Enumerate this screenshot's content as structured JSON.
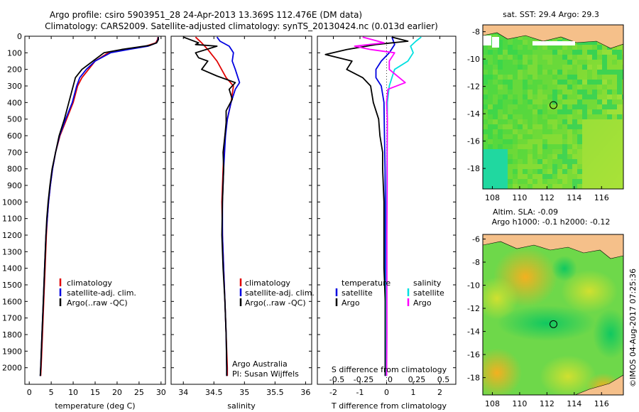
{
  "header": {
    "title_line1": "Argo profile: csiro 5903951_28 24-Apr-2013 13.369S 112.476E (DM data)",
    "title_line2": "Climatology: CARS2009. Satellite-adjusted climatology: synTS_20130424.nc (0.013d earlier)"
  },
  "colors": {
    "climatology": "#e00000",
    "satellite": "#0000e0",
    "argo": "#000000",
    "sat_salinity": "#00e0e0",
    "argo_salinity": "#ff00ff"
  },
  "chart_data": [
    {
      "id": "temperature",
      "type": "line",
      "xlabel": "temperature (deg C)",
      "ylabel": "",
      "xlim": [
        -1,
        31
      ],
      "ylim": [
        2100,
        0
      ],
      "xticks": [
        0,
        5,
        10,
        15,
        20,
        25,
        30
      ],
      "xtick_labels": [
        "0",
        "5",
        "10",
        "15",
        "20",
        "25",
        "30"
      ],
      "yticks": [
        0,
        100,
        200,
        300,
        400,
        500,
        600,
        700,
        800,
        900,
        1000,
        1100,
        1200,
        1300,
        1400,
        1500,
        1600,
        1700,
        1800,
        1900,
        2000
      ],
      "ytick_labels": [
        "0",
        "100",
        "200",
        "300",
        "400",
        "500",
        "600",
        "700",
        "800",
        "900",
        "1000",
        "1100",
        "1200",
        "1300",
        "1400",
        "1500",
        "1600",
        "1700",
        "1800",
        "1900",
        "2000"
      ],
      "legend": {
        "position": "bottom-left",
        "items": [
          "climatology",
          "satellite-adj. clim.",
          "Argo(..raw -QC)"
        ]
      },
      "series": [
        {
          "name": "climatology",
          "color": "#e00000",
          "points": [
            [
              29.3,
              5
            ],
            [
              29.2,
              20
            ],
            [
              28.8,
              40
            ],
            [
              26.5,
              60
            ],
            [
              22,
              80
            ],
            [
              18,
              100
            ],
            [
              15,
              150
            ],
            [
              13.5,
              200
            ],
            [
              12,
              250
            ],
            [
              11,
              300
            ],
            [
              10,
              400
            ],
            [
              8.5,
              500
            ],
            [
              7,
              600
            ],
            [
              6,
              700
            ],
            [
              5.3,
              800
            ],
            [
              4.8,
              900
            ],
            [
              4.4,
              1000
            ],
            [
              4.1,
              1100
            ],
            [
              3.9,
              1200
            ],
            [
              3.6,
              1400
            ],
            [
              3.3,
              1600
            ],
            [
              3,
              1800
            ],
            [
              2.7,
              2000
            ],
            [
              2.6,
              2050
            ]
          ]
        },
        {
          "name": "satellite-adj. clim.",
          "color": "#0000e0",
          "points": [
            [
              29.4,
              5
            ],
            [
              29.3,
              20
            ],
            [
              29,
              40
            ],
            [
              27,
              60
            ],
            [
              22.5,
              80
            ],
            [
              18.5,
              100
            ],
            [
              15,
              150
            ],
            [
              13,
              200
            ],
            [
              11.5,
              250
            ],
            [
              10.8,
              300
            ],
            [
              9.8,
              400
            ],
            [
              8.3,
              500
            ],
            [
              6.9,
              600
            ],
            [
              6,
              700
            ],
            [
              5.3,
              800
            ],
            [
              4.8,
              900
            ],
            [
              4.4,
              1000
            ],
            [
              4.1,
              1100
            ],
            [
              3.8,
              1200
            ],
            [
              3.5,
              1400
            ],
            [
              3.2,
              1600
            ],
            [
              2.9,
              1800
            ],
            [
              2.6,
              2000
            ],
            [
              2.5,
              2050
            ]
          ]
        },
        {
          "name": "Argo(..raw -QC)",
          "color": "#000000",
          "points": [
            [
              29.4,
              5
            ],
            [
              29.4,
              20
            ],
            [
              29,
              40
            ],
            [
              27.5,
              55
            ],
            [
              21,
              80
            ],
            [
              17,
              100
            ],
            [
              14.5,
              150
            ],
            [
              12,
              200
            ],
            [
              10.5,
              250
            ],
            [
              10,
              300
            ],
            [
              9,
              400
            ],
            [
              8,
              500
            ],
            [
              6.8,
              600
            ],
            [
              6,
              700
            ],
            [
              5.2,
              800
            ],
            [
              4.7,
              900
            ],
            [
              4.3,
              1000
            ],
            [
              4,
              1100
            ],
            [
              3.8,
              1200
            ],
            [
              3.5,
              1400
            ],
            [
              3.2,
              1600
            ],
            [
              2.9,
              1800
            ],
            [
              2.6,
              2000
            ],
            [
              2.5,
              2050
            ]
          ]
        }
      ]
    },
    {
      "id": "salinity",
      "type": "line",
      "xlabel": "salinity",
      "xlim": [
        33.8,
        36.1
      ],
      "ylim": [
        2100,
        0
      ],
      "xticks": [
        34,
        34.5,
        35,
        35.5,
        36
      ],
      "xtick_labels": [
        "34",
        "34.5",
        "35",
        "35.5",
        "36"
      ],
      "legend": {
        "position": "bottom-right",
        "items": [
          "climatology",
          "satellite-adj. clim.",
          "Argo(..raw -QC)"
        ]
      },
      "annotation": [
        "Argo Australia",
        "PI: Susan Wijffels"
      ],
      "series": [
        {
          "name": "climatology",
          "color": "#e00000",
          "points": [
            [
              34.2,
              5
            ],
            [
              34.3,
              40
            ],
            [
              34.4,
              80
            ],
            [
              34.55,
              150
            ],
            [
              34.7,
              250
            ],
            [
              34.82,
              300
            ],
            [
              34.78,
              400
            ],
            [
              34.72,
              500
            ],
            [
              34.68,
              600
            ],
            [
              34.65,
              800
            ],
            [
              34.63,
              1000
            ],
            [
              34.64,
              1200
            ],
            [
              34.66,
              1400
            ],
            [
              34.68,
              1600
            ],
            [
              34.7,
              1800
            ],
            [
              34.72,
              2000
            ],
            [
              34.72,
              2050
            ]
          ]
        },
        {
          "name": "satellite-adj. clim.",
          "color": "#0000e0",
          "points": [
            [
              34.55,
              5
            ],
            [
              34.6,
              30
            ],
            [
              34.75,
              60
            ],
            [
              34.82,
              100
            ],
            [
              34.8,
              150
            ],
            [
              34.85,
              200
            ],
            [
              34.92,
              280
            ],
            [
              34.85,
              320
            ],
            [
              34.78,
              400
            ],
            [
              34.72,
              500
            ],
            [
              34.69,
              600
            ],
            [
              34.66,
              800
            ],
            [
              34.64,
              1000
            ],
            [
              34.64,
              1200
            ],
            [
              34.66,
              1400
            ],
            [
              34.68,
              1600
            ],
            [
              34.7,
              1800
            ],
            [
              34.71,
              2000
            ],
            [
              34.71,
              2050
            ]
          ]
        },
        {
          "name": "Argo(..raw -QC)",
          "color": "#000000",
          "points": [
            [
              34.0,
              5
            ],
            [
              34.25,
              40
            ],
            [
              34.2,
              50
            ],
            [
              34.55,
              60
            ],
            [
              34.2,
              100
            ],
            [
              34.25,
              130
            ],
            [
              34.4,
              150
            ],
            [
              34.3,
              200
            ],
            [
              34.55,
              240
            ],
            [
              34.85,
              280
            ],
            [
              34.75,
              320
            ],
            [
              34.8,
              380
            ],
            [
              34.7,
              450
            ],
            [
              34.7,
              520
            ],
            [
              34.68,
              600
            ],
            [
              34.65,
              700
            ],
            [
              34.66,
              800
            ],
            [
              34.64,
              1000
            ],
            [
              34.63,
              1200
            ],
            [
              34.65,
              1400
            ],
            [
              34.68,
              1600
            ],
            [
              34.7,
              1800
            ],
            [
              34.71,
              2000
            ],
            [
              34.71,
              2050
            ]
          ]
        }
      ]
    },
    {
      "id": "difference",
      "type": "line",
      "xlabel": "T difference from climatology",
      "xlabel2": "S difference from climatology",
      "xlim": [
        -2.6,
        2.6
      ],
      "ylim": [
        2100,
        0
      ],
      "xticks": [
        -2,
        -1,
        0,
        1,
        2
      ],
      "xtick_labels": [
        "-2",
        "-1",
        "0",
        "1",
        "2"
      ],
      "xticks_top": [
        -0.5,
        -0.25,
        0,
        0.25,
        0.5
      ],
      "xtick_labels_top": [
        "-0.5",
        "-0.25",
        "0",
        "0.25",
        "0.5"
      ],
      "legend": {
        "position": "bottom",
        "items": [
          "temperature",
          "satellite",
          "Argo",
          "salinity",
          "satellite",
          "Argo"
        ]
      },
      "series": [
        {
          "name": "temperature satellite",
          "color": "#0000e0",
          "points": [
            [
              0.2,
              5
            ],
            [
              0.3,
              50
            ],
            [
              0.1,
              100
            ],
            [
              -0.2,
              150
            ],
            [
              -0.4,
              200
            ],
            [
              -0.4,
              250
            ],
            [
              -0.2,
              300
            ],
            [
              -0.1,
              400
            ],
            [
              -0.08,
              600
            ],
            [
              -0.06,
              800
            ],
            [
              -0.05,
              1000
            ],
            [
              -0.05,
              1400
            ],
            [
              -0.05,
              1800
            ],
            [
              -0.05,
              2050
            ]
          ]
        },
        {
          "name": "temperature Argo",
          "color": "#000000",
          "points": [
            [
              0.2,
              5
            ],
            [
              0.8,
              30
            ],
            [
              -0.4,
              50
            ],
            [
              -1.5,
              80
            ],
            [
              -2.3,
              110
            ],
            [
              -1.3,
              150
            ],
            [
              -1.5,
              200
            ],
            [
              -0.9,
              250
            ],
            [
              -0.6,
              300
            ],
            [
              -0.5,
              400
            ],
            [
              -0.3,
              500
            ],
            [
              -0.25,
              600
            ],
            [
              -0.15,
              700
            ],
            [
              -0.15,
              800
            ],
            [
              -0.1,
              1000
            ],
            [
              -0.1,
              1200
            ],
            [
              -0.1,
              1400
            ],
            [
              -0.05,
              1600
            ],
            [
              -0.05,
              2050
            ]
          ]
        },
        {
          "name": "salinity satellite",
          "color": "#00e0e0",
          "points": [
            [
              1.3,
              5
            ],
            [
              1.1,
              30
            ],
            [
              0.9,
              60
            ],
            [
              1.0,
              100
            ],
            [
              0.8,
              150
            ],
            [
              0.3,
              200
            ],
            [
              0.2,
              250
            ],
            [
              0.1,
              300
            ],
            [
              0.03,
              400
            ],
            [
              0.02,
              600
            ],
            [
              0.01,
              800
            ],
            [
              0,
              1000
            ],
            [
              -0.01,
              1500
            ],
            [
              -0.01,
              2050
            ]
          ]
        },
        {
          "name": "salinity Argo",
          "color": "#ff00ff",
          "points": [
            [
              -0.9,
              5
            ],
            [
              -0.1,
              40
            ],
            [
              -1.2,
              60
            ],
            [
              -0.6,
              80
            ],
            [
              0.3,
              100
            ],
            [
              0.1,
              150
            ],
            [
              0.1,
              200
            ],
            [
              0.7,
              280
            ],
            [
              0.05,
              320
            ],
            [
              0.0,
              400
            ],
            [
              0.03,
              500
            ],
            [
              0.02,
              700
            ],
            [
              0.02,
              900
            ],
            [
              0.01,
              1200
            ],
            [
              0.01,
              1500
            ],
            [
              0.01,
              1800
            ],
            [
              0,
              2050
            ]
          ]
        }
      ]
    },
    {
      "id": "sst_map",
      "type": "heatmap",
      "title": "sat. SST: 29.4 Argo: 29.3",
      "xlim": [
        107.3,
        117.6
      ],
      "ylim": [
        -19.5,
        -7.5
      ],
      "xticks": [
        108,
        110,
        112,
        114,
        116
      ],
      "xtick_labels": [
        "108",
        "110",
        "112",
        "114",
        "116"
      ],
      "yticks": [
        -8,
        -10,
        -12,
        -14,
        -16,
        -18
      ],
      "ytick_labels": [
        "-8",
        "-10",
        "-12",
        "-14",
        "-16",
        "-18"
      ],
      "marker": {
        "lon": 112.476,
        "lat": -13.369
      }
    },
    {
      "id": "sla_map",
      "type": "heatmap",
      "title_line1": "Altim. SLA: -0.09",
      "title_line2": "Argo h1000: -0.1 h2000: -0.12",
      "xlim": [
        107.3,
        117.6
      ],
      "ylim": [
        -19.5,
        -5.6
      ],
      "xticks": [
        108,
        110,
        112,
        114,
        116
      ],
      "xtick_labels": [
        "108",
        "110",
        "112",
        "114",
        "116"
      ],
      "yticks": [
        -6,
        -8,
        -10,
        -12,
        -14,
        -16,
        -18
      ],
      "ytick_labels": [
        "-6",
        "-8",
        "-10",
        "-12",
        "-14",
        "-16",
        "-18"
      ],
      "marker": {
        "lon": 112.476,
        "lat": -13.369
      }
    }
  ],
  "footer": {
    "stamp": "©IMOS 04-Aug-2017 07:25:36"
  }
}
